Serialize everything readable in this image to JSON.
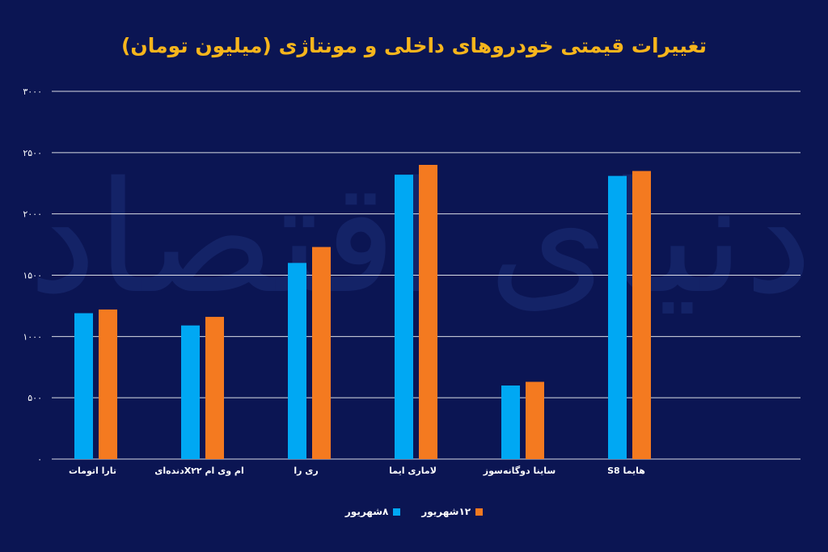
{
  "chart_data": {
    "type": "bar",
    "title": "تغییرات قیمتی خودروهای داخلی و مونتاژی (میلیون تومان)",
    "categories": [
      "تارا اتومات",
      "ام وی ام X۲۲دنده‌ای",
      "ری را",
      "لاماری ایما",
      "ساینا دوگانه‌سوز",
      "هایما S8"
    ],
    "series": [
      {
        "name": "۸شهریور",
        "color": "#00a8f3",
        "values": [
          1190,
          1090,
          1600,
          2320,
          600,
          2310
        ]
      },
      {
        "name": "۱۲شهریور",
        "color": "#f47a20",
        "values": [
          1220,
          1160,
          1730,
          2400,
          630,
          2350
        ]
      }
    ],
    "y_ticks": [
      "۰",
      "۵۰۰",
      "۱۰۰۰",
      "۱۵۰۰",
      "۲۰۰۰",
      "۲۵۰۰",
      "۳۰۰۰"
    ],
    "ylim": [
      0,
      3000
    ],
    "grid": true,
    "legend_position": "bottom-center"
  },
  "colors": {
    "background": "#0b1553",
    "title": "#f7b51c",
    "grid": "#ffffff",
    "text": "#ffffff"
  },
  "watermark_text": "دنیای اقتصاد"
}
